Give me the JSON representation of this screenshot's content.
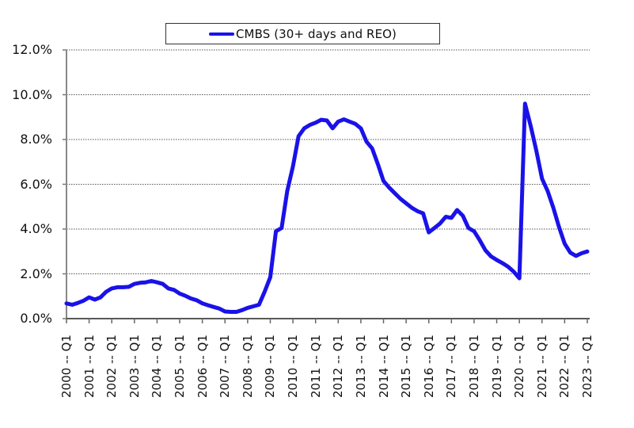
{
  "chart_data": {
    "type": "line",
    "title": "",
    "xlabel": "",
    "ylabel": "",
    "ylim": [
      0,
      12
    ],
    "y_ticks": [
      "0.0%",
      "2.0%",
      "4.0%",
      "6.0%",
      "8.0%",
      "10.0%",
      "12.0%"
    ],
    "y_tick_values": [
      0,
      2,
      4,
      6,
      8,
      10,
      12
    ],
    "x_ticks": [
      "2000 -- Q1",
      "2001 -- Q1",
      "2002 -- Q1",
      "2003 -- Q1",
      "2004 -- Q1",
      "2005 -- Q1",
      "2006 -- Q1",
      "2007 -- Q1",
      "2008 -- Q1",
      "2009 -- Q1",
      "2010 -- Q1",
      "2011 -- Q1",
      "2012 -- Q1",
      "2013 -- Q1",
      "2014 -- Q1",
      "2015 -- Q1",
      "2016 -- Q1",
      "2017 -- Q1",
      "2018 -- Q1",
      "2019 -- Q1",
      "2020 -- Q1",
      "2021 -- Q1",
      "2022 -- Q1",
      "2023 -- Q1"
    ],
    "grid": "horizontal dotted",
    "legend_position": "top-center",
    "x_frequency": "quarterly, 2000 Q1 to 2023 Q1",
    "series": [
      {
        "name": "CMBS (30+ days and REO)",
        "color": "#1a12e8",
        "values": [
          0.68,
          0.62,
          0.7,
          0.8,
          0.95,
          0.85,
          0.95,
          1.2,
          1.35,
          1.4,
          1.4,
          1.42,
          1.55,
          1.6,
          1.62,
          1.68,
          1.62,
          1.55,
          1.35,
          1.28,
          1.12,
          1.02,
          0.9,
          0.82,
          0.68,
          0.6,
          0.52,
          0.45,
          0.32,
          0.3,
          0.3,
          0.38,
          0.48,
          0.55,
          0.62,
          1.2,
          1.85,
          3.9,
          4.05,
          5.7,
          6.8,
          8.15,
          8.5,
          8.65,
          8.75,
          8.88,
          8.85,
          8.5,
          8.8,
          8.9,
          8.8,
          8.7,
          8.5,
          7.9,
          7.6,
          6.9,
          6.15,
          5.85,
          5.6,
          5.35,
          5.15,
          4.95,
          4.8,
          4.7,
          3.85,
          4.05,
          4.25,
          4.55,
          4.5,
          4.85,
          4.6,
          4.05,
          3.9,
          3.5,
          3.05,
          2.78,
          2.62,
          2.48,
          2.32,
          2.1,
          1.8,
          9.6,
          8.6,
          7.5,
          6.25,
          5.7,
          4.95,
          4.1,
          3.35,
          2.95,
          2.8,
          2.92,
          3.0
        ]
      }
    ]
  },
  "legend": {
    "label": "CMBS (30+ days and REO)",
    "color": "#1a12e8"
  }
}
